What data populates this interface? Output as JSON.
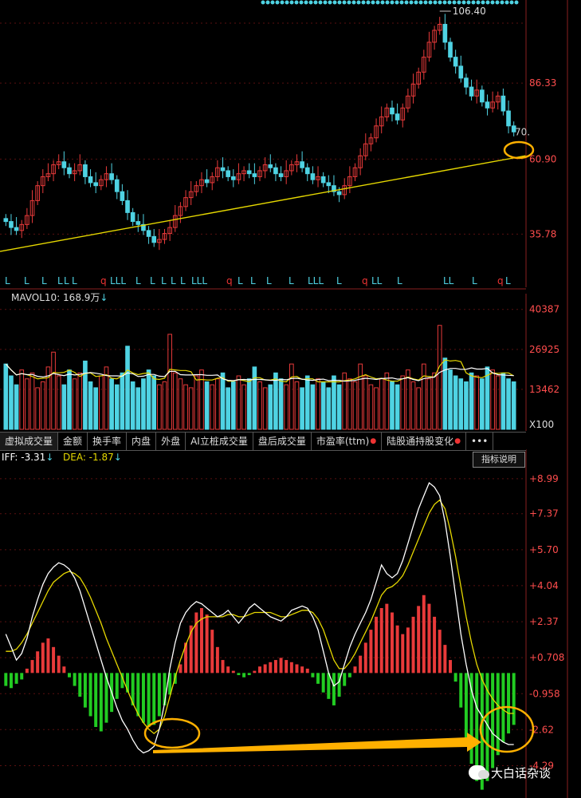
{
  "colors": {
    "up": "#e83a3a",
    "down": "#4fd3e3",
    "trendline": "#e6d800",
    "ma_white": "#ffffff",
    "ma_yellow": "#e6d800",
    "macd_pos": "#e83a3a",
    "macd_neg": "#22cc22",
    "highlight": "#ffb000",
    "grid": "#5a1010",
    "axis_text": "#ff4d4d"
  },
  "price_panel": {
    "axis_labels": [
      "106.40",
      "86.33",
      "70.",
      "60.90",
      "35.78"
    ],
    "peak_label": "106.40",
    "last_label": "70."
  },
  "volume_panel": {
    "header_label": "MAVOL10: 168.9万",
    "axis_labels": [
      "40387",
      "26925",
      "13462",
      "X100"
    ]
  },
  "tabs": [
    {
      "label": "虚拟成交量",
      "badge": false
    },
    {
      "label": "金额",
      "badge": false
    },
    {
      "label": "换手率",
      "badge": false
    },
    {
      "label": "内盘",
      "badge": false
    },
    {
      "label": "外盘",
      "badge": false
    },
    {
      "label": "AI立桩成交量",
      "badge": false
    },
    {
      "label": "盘后成交量",
      "badge": false
    },
    {
      "label": "市盈率(ttm)",
      "badge": true
    },
    {
      "label": "陆股通持股变化",
      "badge": true
    },
    {
      "label": "•••",
      "badge": false
    }
  ],
  "macd_panel": {
    "diff_label": "IFF: -3.31",
    "dea_label": "DEA: -1.87",
    "note_button": "指标说明",
    "axis_labels": [
      "+8.99",
      "+7.37",
      "+5.70",
      "+4.04",
      "+2.37",
      "+0.708",
      "-0.958",
      "-2.62",
      "-4.29"
    ]
  },
  "watermark": "大白话杂谈",
  "chart_data": [
    {
      "type": "candlestick",
      "name": "price",
      "y_ticks": [
        35.78,
        60.9,
        86.33,
        106.4
      ],
      "ylim": [
        22,
        112
      ],
      "closes": [
        40,
        38,
        37,
        39,
        42,
        47,
        52,
        55,
        56,
        59,
        60,
        58,
        56,
        57,
        59,
        55,
        53,
        52,
        54,
        56,
        54,
        50,
        47,
        43,
        40,
        39,
        37,
        35,
        33,
        34,
        36,
        38,
        42,
        45,
        48,
        50,
        52,
        54,
        53,
        55,
        58,
        57,
        55,
        54,
        56,
        57,
        56,
        55,
        57,
        59,
        58,
        56,
        55,
        57,
        59,
        60,
        58,
        56,
        54,
        55,
        53,
        52,
        50,
        49,
        52,
        55,
        58,
        62,
        66,
        68,
        72,
        75,
        78,
        76,
        74,
        78,
        82,
        86,
        90,
        95,
        100,
        104,
        106,
        100,
        95,
        92,
        88,
        85,
        82,
        84,
        80,
        78,
        80,
        82,
        77,
        72,
        70
      ],
      "trendline": {
        "start": [
          0,
          30
        ],
        "end": [
          96,
          62
        ]
      },
      "peak_value": 106.4,
      "last_value": 70
    },
    {
      "type": "bar",
      "name": "volume",
      "y_ticks": [
        13462,
        26925,
        40387
      ],
      "ylim": [
        0,
        43000
      ],
      "values": [
        22000,
        18000,
        15000,
        20000,
        17000,
        19000,
        14000,
        16000,
        21000,
        26000,
        18000,
        15000,
        20000,
        17000,
        19000,
        23000,
        16000,
        14000,
        18000,
        21000,
        17000,
        15000,
        19000,
        28000,
        16000,
        14000,
        17000,
        20000,
        18000,
        15000,
        16000,
        32000,
        19000,
        17000,
        15000,
        14000,
        18000,
        20000,
        16000,
        15000,
        17000,
        19000,
        14000,
        16000,
        18000,
        15000,
        17000,
        21000,
        16000,
        14000,
        15000,
        19000,
        17000,
        15000,
        22000,
        16000,
        14000,
        18000,
        15000,
        17000,
        16000,
        14000,
        18000,
        15000,
        19000,
        17000,
        16000,
        22000,
        18000,
        15000,
        14000,
        17000,
        19000,
        16000,
        15000,
        18000,
        20000,
        16000,
        14000,
        22000,
        17000,
        19000,
        35000,
        24000,
        20000,
        18000,
        17000,
        16000,
        19000,
        18000,
        17000,
        21000,
        20000,
        18000,
        19000,
        17000,
        16000
      ]
    },
    {
      "type": "bar",
      "name": "macd",
      "y_ticks": [
        -4.29,
        -2.62,
        -0.958,
        0.708,
        2.37,
        4.04,
        5.7,
        7.37,
        8.99
      ],
      "ylim": [
        -5.6,
        9.5
      ],
      "histogram": [
        -0.6,
        -0.7,
        -0.5,
        -0.3,
        0.2,
        0.6,
        1.0,
        1.4,
        1.6,
        1.2,
        0.8,
        0.3,
        -0.2,
        -0.6,
        -1.1,
        -1.6,
        -2.0,
        -2.5,
        -2.7,
        -2.3,
        -1.8,
        -1.2,
        -0.7,
        -0.9,
        -1.5,
        -2.0,
        -2.3,
        -2.5,
        -2.4,
        -2.0,
        -1.5,
        -1.0,
        -0.5,
        0.4,
        1.4,
        2.2,
        2.8,
        3.0,
        2.7,
        2.0,
        1.2,
        0.6,
        0.3,
        0.1,
        -0.1,
        -0.2,
        -0.1,
        0.1,
        0.3,
        0.4,
        0.5,
        0.6,
        0.7,
        0.6,
        0.5,
        0.4,
        0.3,
        0.2,
        -0.2,
        -0.5,
        -0.9,
        -1.2,
        -1.5,
        -1.1,
        -0.6,
        -0.2,
        0.3,
        0.8,
        1.4,
        2.0,
        2.6,
        3.0,
        3.2,
        2.8,
        2.2,
        1.8,
        2.1,
        2.6,
        3.1,
        3.6,
        3.2,
        2.6,
        2.0,
        1.3,
        0.6,
        -0.4,
        -1.6,
        -3.0,
        -4.2,
        -5.0,
        -5.4,
        -5.0,
        -4.4,
        -3.8,
        -3.2,
        -2.8,
        -2.4
      ],
      "diff": [
        1.8,
        1.2,
        0.6,
        0.9,
        1.6,
        2.6,
        3.4,
        4.1,
        4.6,
        4.9,
        5.1,
        5.0,
        4.8,
        4.4,
        3.8,
        3.0,
        2.2,
        1.4,
        0.6,
        -0.2,
        -0.9,
        -1.6,
        -2.2,
        -2.6,
        -3.1,
        -3.5,
        -3.7,
        -3.6,
        -3.4,
        -2.6,
        -1.4,
        0.2,
        1.4,
        2.3,
        2.8,
        3.1,
        3.3,
        3.2,
        3.0,
        2.8,
        2.6,
        2.7,
        2.9,
        2.6,
        2.3,
        2.6,
        3.0,
        3.2,
        3.0,
        2.8,
        2.6,
        2.5,
        2.4,
        2.6,
        2.9,
        3.0,
        3.1,
        3.0,
        2.6,
        2.0,
        1.0,
        0.0,
        -0.6,
        -0.4,
        0.4,
        1.2,
        1.8,
        2.3,
        2.8,
        3.4,
        4.2,
        5.0,
        4.6,
        4.4,
        4.6,
        5.2,
        6.0,
        6.8,
        7.6,
        8.2,
        8.8,
        8.6,
        8.2,
        7.0,
        5.4,
        3.6,
        1.8,
        0.4,
        -0.8,
        -1.6,
        -2.0,
        -2.4,
        -2.8,
        -3.0,
        -3.2,
        -3.31,
        -3.31
      ],
      "dea": [
        1.0,
        1.0,
        1.1,
        1.4,
        1.8,
        2.3,
        2.8,
        3.3,
        3.8,
        4.2,
        4.4,
        4.6,
        4.7,
        4.6,
        4.4,
        4.0,
        3.5,
        2.9,
        2.3,
        1.6,
        1.0,
        0.4,
        -0.2,
        -0.8,
        -1.4,
        -1.9,
        -2.3,
        -2.6,
        -2.8,
        -2.6,
        -2.0,
        -1.1,
        -0.2,
        0.6,
        1.3,
        1.9,
        2.3,
        2.5,
        2.6,
        2.6,
        2.6,
        2.6,
        2.7,
        2.7,
        2.6,
        2.6,
        2.7,
        2.8,
        2.8,
        2.8,
        2.8,
        2.7,
        2.6,
        2.6,
        2.7,
        2.8,
        2.9,
        2.9,
        2.8,
        2.5,
        2.0,
        1.3,
        0.6,
        0.2,
        0.2,
        0.5,
        0.9,
        1.4,
        1.9,
        2.4,
        3.0,
        3.6,
        3.9,
        4.0,
        4.2,
        4.5,
        5.0,
        5.6,
        6.2,
        6.8,
        7.4,
        7.8,
        8.0,
        7.6,
        6.6,
        5.4,
        4.0,
        2.6,
        1.4,
        0.4,
        -0.3,
        -0.8,
        -1.2,
        -1.5,
        -1.7,
        -1.87,
        -1.87
      ]
    }
  ]
}
